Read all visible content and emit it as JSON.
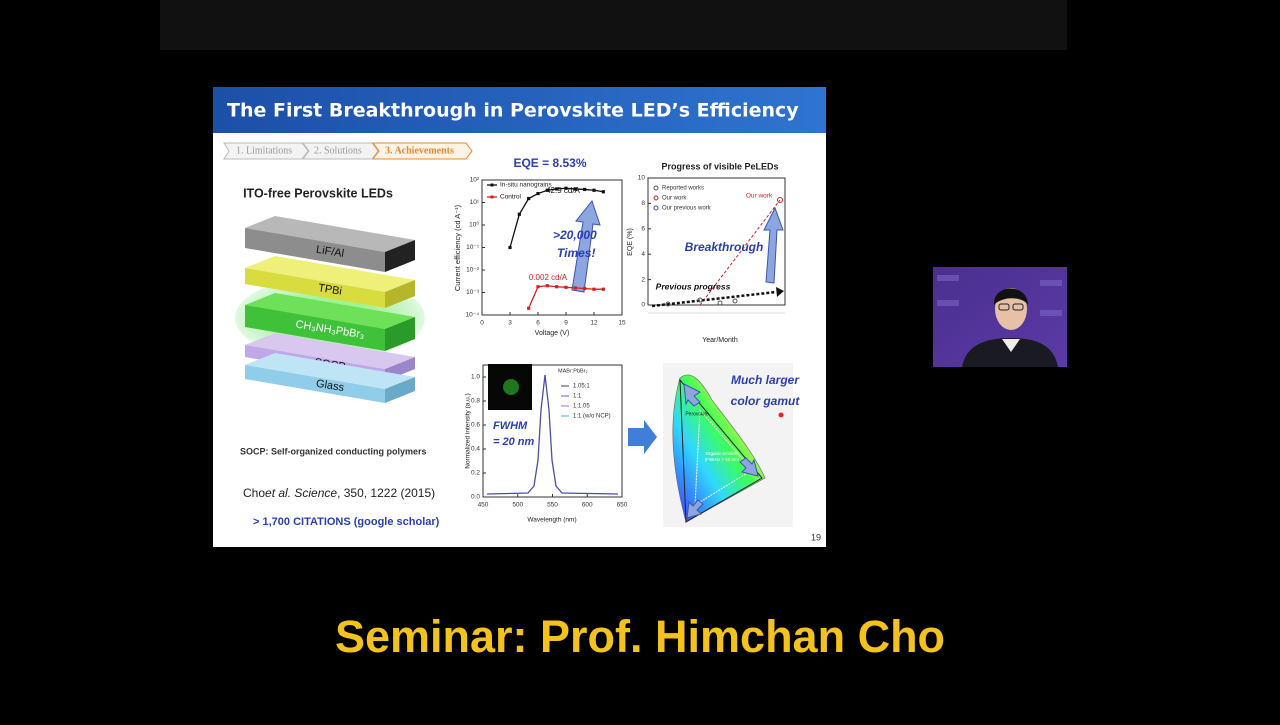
{
  "slide": {
    "title": "The First Breakthrough in Perovskite LED’s Efficiency",
    "breadcrumbs": [
      "1. Limitations",
      "2. Solutions",
      "3. Achievements"
    ],
    "device": {
      "heading": "ITO-free Perovskite LEDs",
      "layers": [
        "LiF/Al",
        "TPBi",
        "CH₃NH₃PbBr₃",
        "SOCP",
        "Glass"
      ],
      "note": "SOCP: Self-organized conducting polymers"
    },
    "reference": {
      "authors": "Cho",
      "journal": "et al. Science",
      "details": ", 350, 1222 (2015)",
      "citations": "> 1,700 CITATIONS (google scholar)"
    },
    "efficiency_chart": {
      "title": "EQE = 8.53%",
      "y_label": "Current efficiency (cd A⁻¹)",
      "x_label": "Voltage (V)",
      "xlim": [
        0,
        15
      ],
      "xticks": [
        0,
        3,
        6,
        9,
        12,
        15
      ],
      "log_y": true,
      "ylim": [
        0.0001,
        100
      ],
      "yticks": [
        {
          "value": 100,
          "label": "10²"
        },
        {
          "value": 10,
          "label": "10¹"
        },
        {
          "value": 1,
          "label": "10⁰"
        },
        {
          "value": 0.1,
          "label": "10⁻¹"
        },
        {
          "value": 0.01,
          "label": "10⁻²"
        },
        {
          "value": 0.001,
          "label": "10⁻³"
        },
        {
          "value": 0.0001,
          "label": "10⁻⁴"
        }
      ],
      "series": [
        {
          "name": "In-situ nanograins",
          "color": "#111111",
          "x": [
            3,
            4,
            5,
            6,
            7,
            8,
            9,
            10,
            11,
            12,
            13
          ],
          "values": [
            0.1,
            3,
            15,
            25,
            35,
            40,
            42.9,
            40,
            38,
            35,
            30
          ]
        },
        {
          "name": "Control",
          "color": "#d81e1e",
          "x": [
            5,
            6,
            7,
            8,
            9,
            10,
            11,
            12,
            13
          ],
          "values": [
            0.0002,
            0.0018,
            0.002,
            0.0018,
            0.0017,
            0.0016,
            0.0015,
            0.0014,
            0.0014
          ]
        }
      ],
      "peak_label": "42.9 cd/A",
      "control_label": "0.002 cd/A",
      "gain": [
        ">20,000",
        "Times!"
      ]
    },
    "progress_chart": {
      "title": "Progress of visible PeLEDs",
      "y_label": "EQE (%)",
      "x_label": "Year/Month",
      "ylim": [
        0,
        10
      ],
      "yticks": [
        0,
        2,
        4,
        6,
        8,
        10
      ],
      "legend": [
        "Reported works",
        "Our work",
        "Our previous work"
      ],
      "our_work": "Our work",
      "breakthrough": "Breakthrough",
      "previous": "Previous progress"
    },
    "pl_chart": {
      "y_label": "Normalized intensity (a.u.)",
      "x_label": "Wavelength (nm)",
      "xlim": [
        450,
        650
      ],
      "xticks": [
        450,
        500,
        550,
        600,
        650
      ],
      "ylim": [
        0,
        1.1
      ],
      "yticks": [
        {
          "value": 0,
          "label": "0.0"
        },
        {
          "value": 0.2,
          "label": "0.2"
        },
        {
          "value": 0.4,
          "label": "0.4"
        },
        {
          "value": 0.6,
          "label": "0.6"
        },
        {
          "value": 0.8,
          "label": "0.8"
        },
        {
          "value": 1,
          "label": "1.0"
        }
      ],
      "legend_title": "MABr:PbBr₂",
      "legend": [
        "1.05:1",
        "1:1",
        "1:1.05",
        "1:1 (w/o NCP)"
      ],
      "fwhm": [
        "FWHM",
        "= 20 nm"
      ]
    },
    "gamut": {
      "caption": [
        "Much larger",
        "color gamut"
      ],
      "perovskite": "Perovskite",
      "organic": [
        "Organic emitters",
        "(FWHM > 50 nm)"
      ]
    },
    "page_number": "19"
  },
  "caption": "Seminar: Prof. Himchan Cho"
}
